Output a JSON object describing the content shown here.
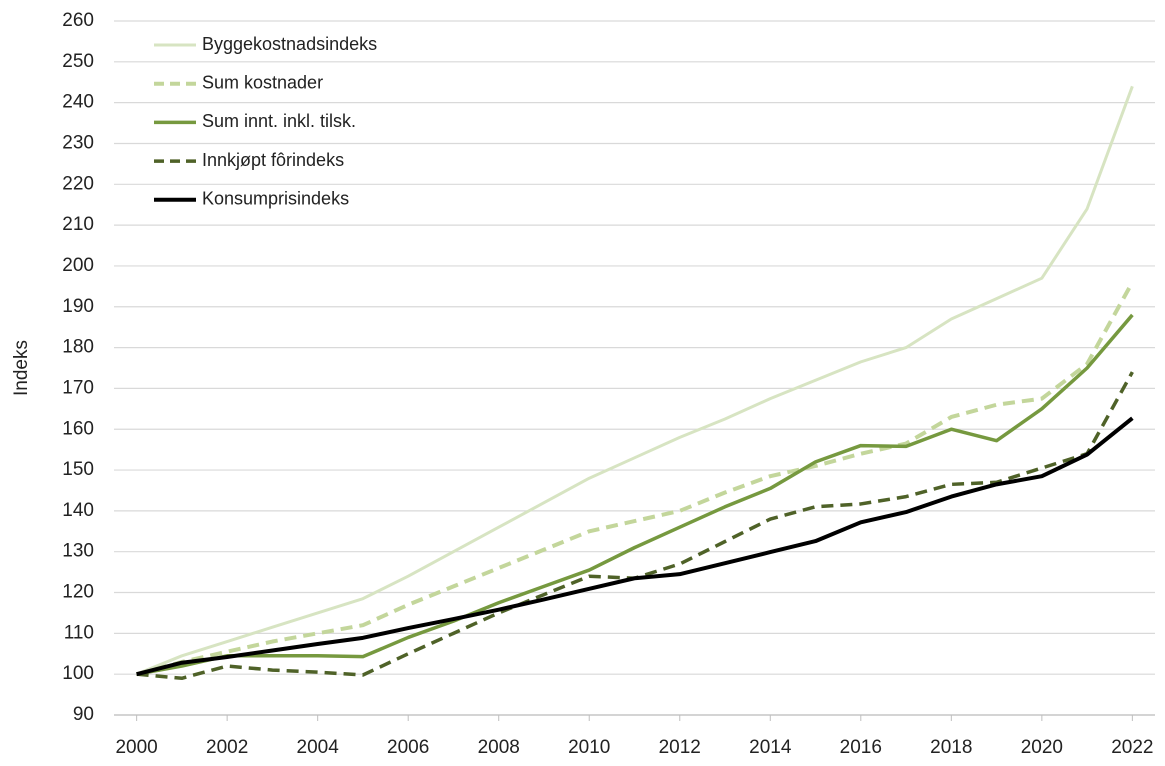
{
  "chart_data": {
    "type": "line",
    "y_label": "Indeks",
    "x": [
      2000,
      2001,
      2002,
      2003,
      2004,
      2005,
      2006,
      2007,
      2008,
      2009,
      2010,
      2011,
      2012,
      2013,
      2014,
      2015,
      2016,
      2017,
      2018,
      2019,
      2020,
      2021,
      2022
    ],
    "series": [
      {
        "name": "Byggekostnadsindeks",
        "color": "#d7e4c2",
        "style": "solid",
        "width": 3,
        "values": [
          100,
          104.5,
          108,
          111.5,
          115,
          118.5,
          124,
          130,
          136,
          142,
          148,
          153,
          158,
          162.5,
          167.5,
          172,
          176.5,
          180,
          187,
          192,
          197,
          214,
          244
        ]
      },
      {
        "name": "Sum kostnader",
        "color": "#c3d69b",
        "style": "dashed",
        "width": 4,
        "values": [
          100,
          103,
          105.5,
          108,
          110,
          112,
          117,
          121.5,
          126,
          130.5,
          135,
          137.5,
          140,
          144.5,
          148.5,
          151,
          154,
          156.5,
          163,
          166,
          167.5,
          176,
          196
        ]
      },
      {
        "name": "Sum innt. inkl. tilsk.",
        "color": "#76993f",
        "style": "solid",
        "width": 3.5,
        "values": [
          100,
          102,
          104.5,
          104.5,
          104.5,
          104.3,
          109,
          113,
          117.5,
          121.5,
          125.5,
          131,
          136,
          141,
          145.5,
          152,
          156,
          155.8,
          160,
          157.2,
          165,
          175,
          188
        ]
      },
      {
        "name": "Innkjøpt fôrindeks",
        "color": "#4f6228",
        "style": "dashed",
        "width": 3.5,
        "values": [
          100,
          99,
          102,
          101,
          100.5,
          99.8,
          105,
          110,
          115,
          119.5,
          124,
          123.5,
          127,
          132.5,
          138,
          141,
          141.7,
          143.5,
          146.5,
          147,
          150.5,
          154,
          174
        ]
      },
      {
        "name": "Konsumprisindeks",
        "color": "#000000",
        "style": "solid",
        "width": 4,
        "values": [
          100,
          102.8,
          104.2,
          105.8,
          107.4,
          108.9,
          111.3,
          113.5,
          115.8,
          118.3,
          120.9,
          123.5,
          124.5,
          127.2,
          129.9,
          132.6,
          137.2,
          139.7,
          143.5,
          146.5,
          148.5,
          153.8,
          162.7
        ]
      }
    ],
    "xlim": [
      1999.5,
      2022.5
    ],
    "xticks": [
      2000,
      2002,
      2004,
      2006,
      2008,
      2010,
      2012,
      2014,
      2016,
      2018,
      2020,
      2022
    ],
    "ylim": [
      90,
      260
    ],
    "yticks": [
      90,
      100,
      110,
      120,
      130,
      140,
      150,
      160,
      170,
      180,
      190,
      200,
      210,
      220,
      230,
      240,
      250,
      260
    ],
    "grid": true,
    "legend": "upper left"
  }
}
